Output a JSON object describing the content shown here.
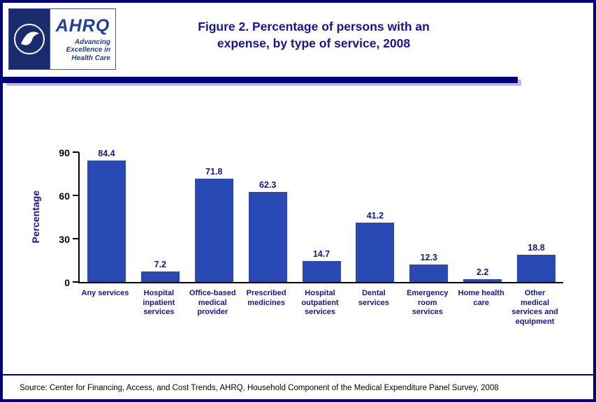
{
  "header": {
    "title_lines": [
      "Figure 2. Percentage of persons with an",
      "expense, by type of service, 2008"
    ],
    "logo": {
      "ahrq": "AHRQ",
      "tagline": [
        "Advancing",
        "Excellence in",
        "Health Care"
      ]
    }
  },
  "chart_data": {
    "type": "bar",
    "title": "Figure 2. Percentage of persons with an expense, by type of service, 2008",
    "xlabel": "",
    "ylabel": "Percentage",
    "ylim": [
      0,
      90
    ],
    "yticks": [
      0,
      30,
      60,
      90
    ],
    "grid": false,
    "legend": "none",
    "bar_color": "#2949b5",
    "categories": [
      "Any services",
      "Hospital inpatient services",
      "Office-based medical provider",
      "Prescribed medicines",
      "Hospital outpatient services",
      "Dental services",
      "Emergency room services",
      "Home health care",
      "Other medical services and equipment"
    ],
    "category_label_lines": [
      [
        "Any services"
      ],
      [
        "Hospital",
        "inpatient",
        "services"
      ],
      [
        "Office-based",
        "medical",
        "provider"
      ],
      [
        "Prescribed",
        "medicines"
      ],
      [
        "Hospital",
        "outpatient",
        "services"
      ],
      [
        "Dental",
        "services"
      ],
      [
        "Emergency",
        "room",
        "services"
      ],
      [
        "Home health",
        "care"
      ],
      [
        "Other",
        "medical",
        "services and",
        "equipment"
      ]
    ],
    "values": [
      84.4,
      7.2,
      71.8,
      62.3,
      14.7,
      41.2,
      12.3,
      2.2,
      18.8
    ]
  },
  "footer": {
    "source": "Source: Center for Financing, Access, and Cost Trends, AHRQ, Household Component of the Medical Expenditure Panel Survey, 2008"
  },
  "colors": {
    "navy_border": "#00007d",
    "title_text": "#15159c",
    "bar_fill": "#2949b5",
    "logo_blue": "#1d3f9e"
  }
}
